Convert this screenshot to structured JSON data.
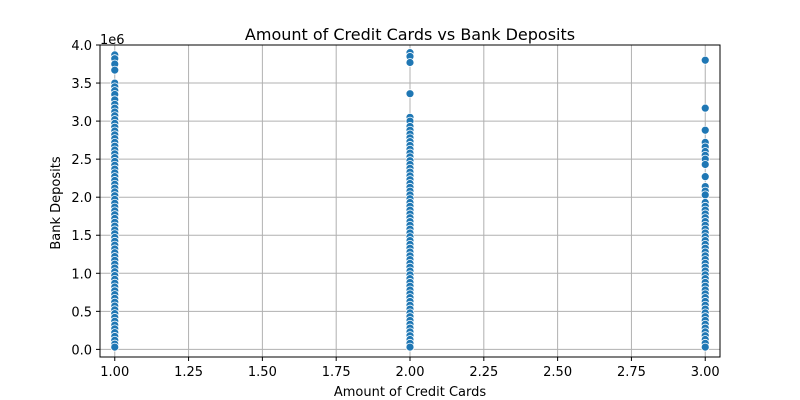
{
  "chart_data": {
    "type": "scatter",
    "title": "Amount of Credit Cards vs Bank Deposits",
    "xlabel": "Amount of Credit Cards",
    "ylabel": "Bank Deposits",
    "y_offset_label": "1e6",
    "xlim": [
      0.95,
      3.05
    ],
    "ylim": [
      -0.1,
      4.0
    ],
    "x_ticks": [
      1.0,
      1.25,
      1.5,
      1.75,
      2.0,
      2.25,
      2.5,
      2.75,
      3.0
    ],
    "x_tick_labels": [
      "1.00",
      "1.25",
      "1.50",
      "1.75",
      "2.00",
      "2.25",
      "2.50",
      "2.75",
      "3.00"
    ],
    "y_ticks": [
      0.0,
      0.5,
      1.0,
      1.5,
      2.0,
      2.5,
      3.0,
      3.5,
      4.0
    ],
    "y_tick_labels": [
      "0.0",
      "0.5",
      "1.0",
      "1.5",
      "2.0",
      "2.5",
      "3.0",
      "3.5",
      "4.0"
    ],
    "grid": true,
    "marker_color": "#1f77b4",
    "points": [
      {
        "x": 1,
        "y": [
          3.87,
          3.82,
          3.75,
          3.67,
          3.5,
          3.45,
          3.4,
          3.35,
          3.28,
          3.22,
          3.17,
          3.12,
          3.07,
          3.02,
          2.97,
          2.92,
          2.87,
          2.82,
          2.77,
          2.72,
          2.67,
          2.62,
          2.57,
          2.52,
          2.47,
          2.42,
          2.37,
          2.32,
          2.27,
          2.22,
          2.17,
          2.12,
          2.07,
          2.02,
          1.97,
          1.92,
          1.87,
          1.82,
          1.77,
          1.72,
          1.67,
          1.62,
          1.57,
          1.52,
          1.47,
          1.42,
          1.37,
          1.32,
          1.27,
          1.22,
          1.17,
          1.12,
          1.07,
          1.02,
          0.97,
          0.92,
          0.87,
          0.82,
          0.77,
          0.72,
          0.67,
          0.62,
          0.57,
          0.52,
          0.47,
          0.42,
          0.37,
          0.32,
          0.27,
          0.22,
          0.17,
          0.12,
          0.07,
          0.03
        ]
      },
      {
        "x": 2,
        "y": [
          3.9,
          3.85,
          3.77,
          3.36,
          3.05,
          3.0,
          2.93,
          2.88,
          2.83,
          2.78,
          2.73,
          2.68,
          2.63,
          2.58,
          2.53,
          2.48,
          2.43,
          2.38,
          2.33,
          2.28,
          2.23,
          2.18,
          2.13,
          2.08,
          2.03,
          1.98,
          1.93,
          1.88,
          1.83,
          1.78,
          1.73,
          1.68,
          1.63,
          1.58,
          1.53,
          1.48,
          1.43,
          1.38,
          1.33,
          1.28,
          1.23,
          1.18,
          1.13,
          1.08,
          1.03,
          0.98,
          0.93,
          0.88,
          0.83,
          0.78,
          0.73,
          0.68,
          0.63,
          0.58,
          0.53,
          0.48,
          0.43,
          0.38,
          0.33,
          0.28,
          0.23,
          0.18,
          0.13,
          0.08,
          0.03
        ]
      },
      {
        "x": 3,
        "y": [
          3.8,
          3.17,
          2.88,
          2.72,
          2.66,
          2.6,
          2.55,
          2.5,
          2.43,
          2.27,
          2.14,
          2.08,
          2.03,
          1.93,
          1.88,
          1.83,
          1.78,
          1.73,
          1.68,
          1.63,
          1.58,
          1.53,
          1.48,
          1.43,
          1.38,
          1.33,
          1.28,
          1.23,
          1.18,
          1.13,
          1.08,
          1.03,
          0.98,
          0.93,
          0.88,
          0.83,
          0.78,
          0.73,
          0.68,
          0.63,
          0.58,
          0.53,
          0.48,
          0.43,
          0.38,
          0.33,
          0.28,
          0.23,
          0.18,
          0.13,
          0.08,
          0.03
        ]
      }
    ]
  }
}
